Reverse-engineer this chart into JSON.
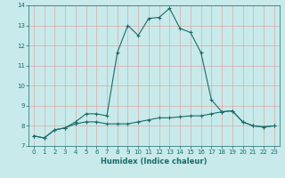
{
  "title": "",
  "xlabel": "Humidex (Indice chaleur)",
  "bg_color": "#c8eaea",
  "grid_color": "#dca8a8",
  "line_color": "#1a6b6b",
  "xlim": [
    -0.5,
    23.5
  ],
  "ylim": [
    7,
    14
  ],
  "xticks": [
    0,
    1,
    2,
    3,
    4,
    5,
    6,
    7,
    8,
    9,
    10,
    11,
    12,
    13,
    14,
    15,
    16,
    17,
    18,
    19,
    20,
    21,
    22,
    23
  ],
  "yticks": [
    7,
    8,
    9,
    10,
    11,
    12,
    13,
    14
  ],
  "line1_x": [
    0,
    1,
    2,
    3,
    4,
    5,
    6,
    7,
    8,
    9,
    10,
    11,
    12,
    13,
    14,
    15,
    16,
    17,
    18,
    19,
    20,
    21,
    22,
    23
  ],
  "line1_y": [
    7.5,
    7.4,
    7.8,
    7.9,
    8.2,
    8.6,
    8.6,
    8.5,
    11.65,
    13.0,
    12.5,
    13.35,
    13.4,
    13.85,
    12.85,
    12.65,
    11.65,
    9.3,
    8.7,
    8.75,
    8.2,
    8.0,
    7.95,
    8.0
  ],
  "line2_x": [
    0,
    1,
    2,
    3,
    4,
    5,
    6,
    7,
    8,
    9,
    10,
    11,
    12,
    13,
    14,
    15,
    16,
    17,
    18,
    19,
    20,
    21,
    22,
    23
  ],
  "line2_y": [
    7.5,
    7.4,
    7.8,
    7.9,
    8.1,
    8.2,
    8.2,
    8.1,
    8.1,
    8.1,
    8.2,
    8.3,
    8.4,
    8.4,
    8.45,
    8.5,
    8.5,
    8.6,
    8.7,
    8.75,
    8.2,
    8.0,
    7.95,
    8.0
  ],
  "marker_size": 3,
  "linewidth": 0.8,
  "tick_labelsize": 5,
  "xlabel_fontsize": 6,
  "xlabel_fontweight": "bold"
}
